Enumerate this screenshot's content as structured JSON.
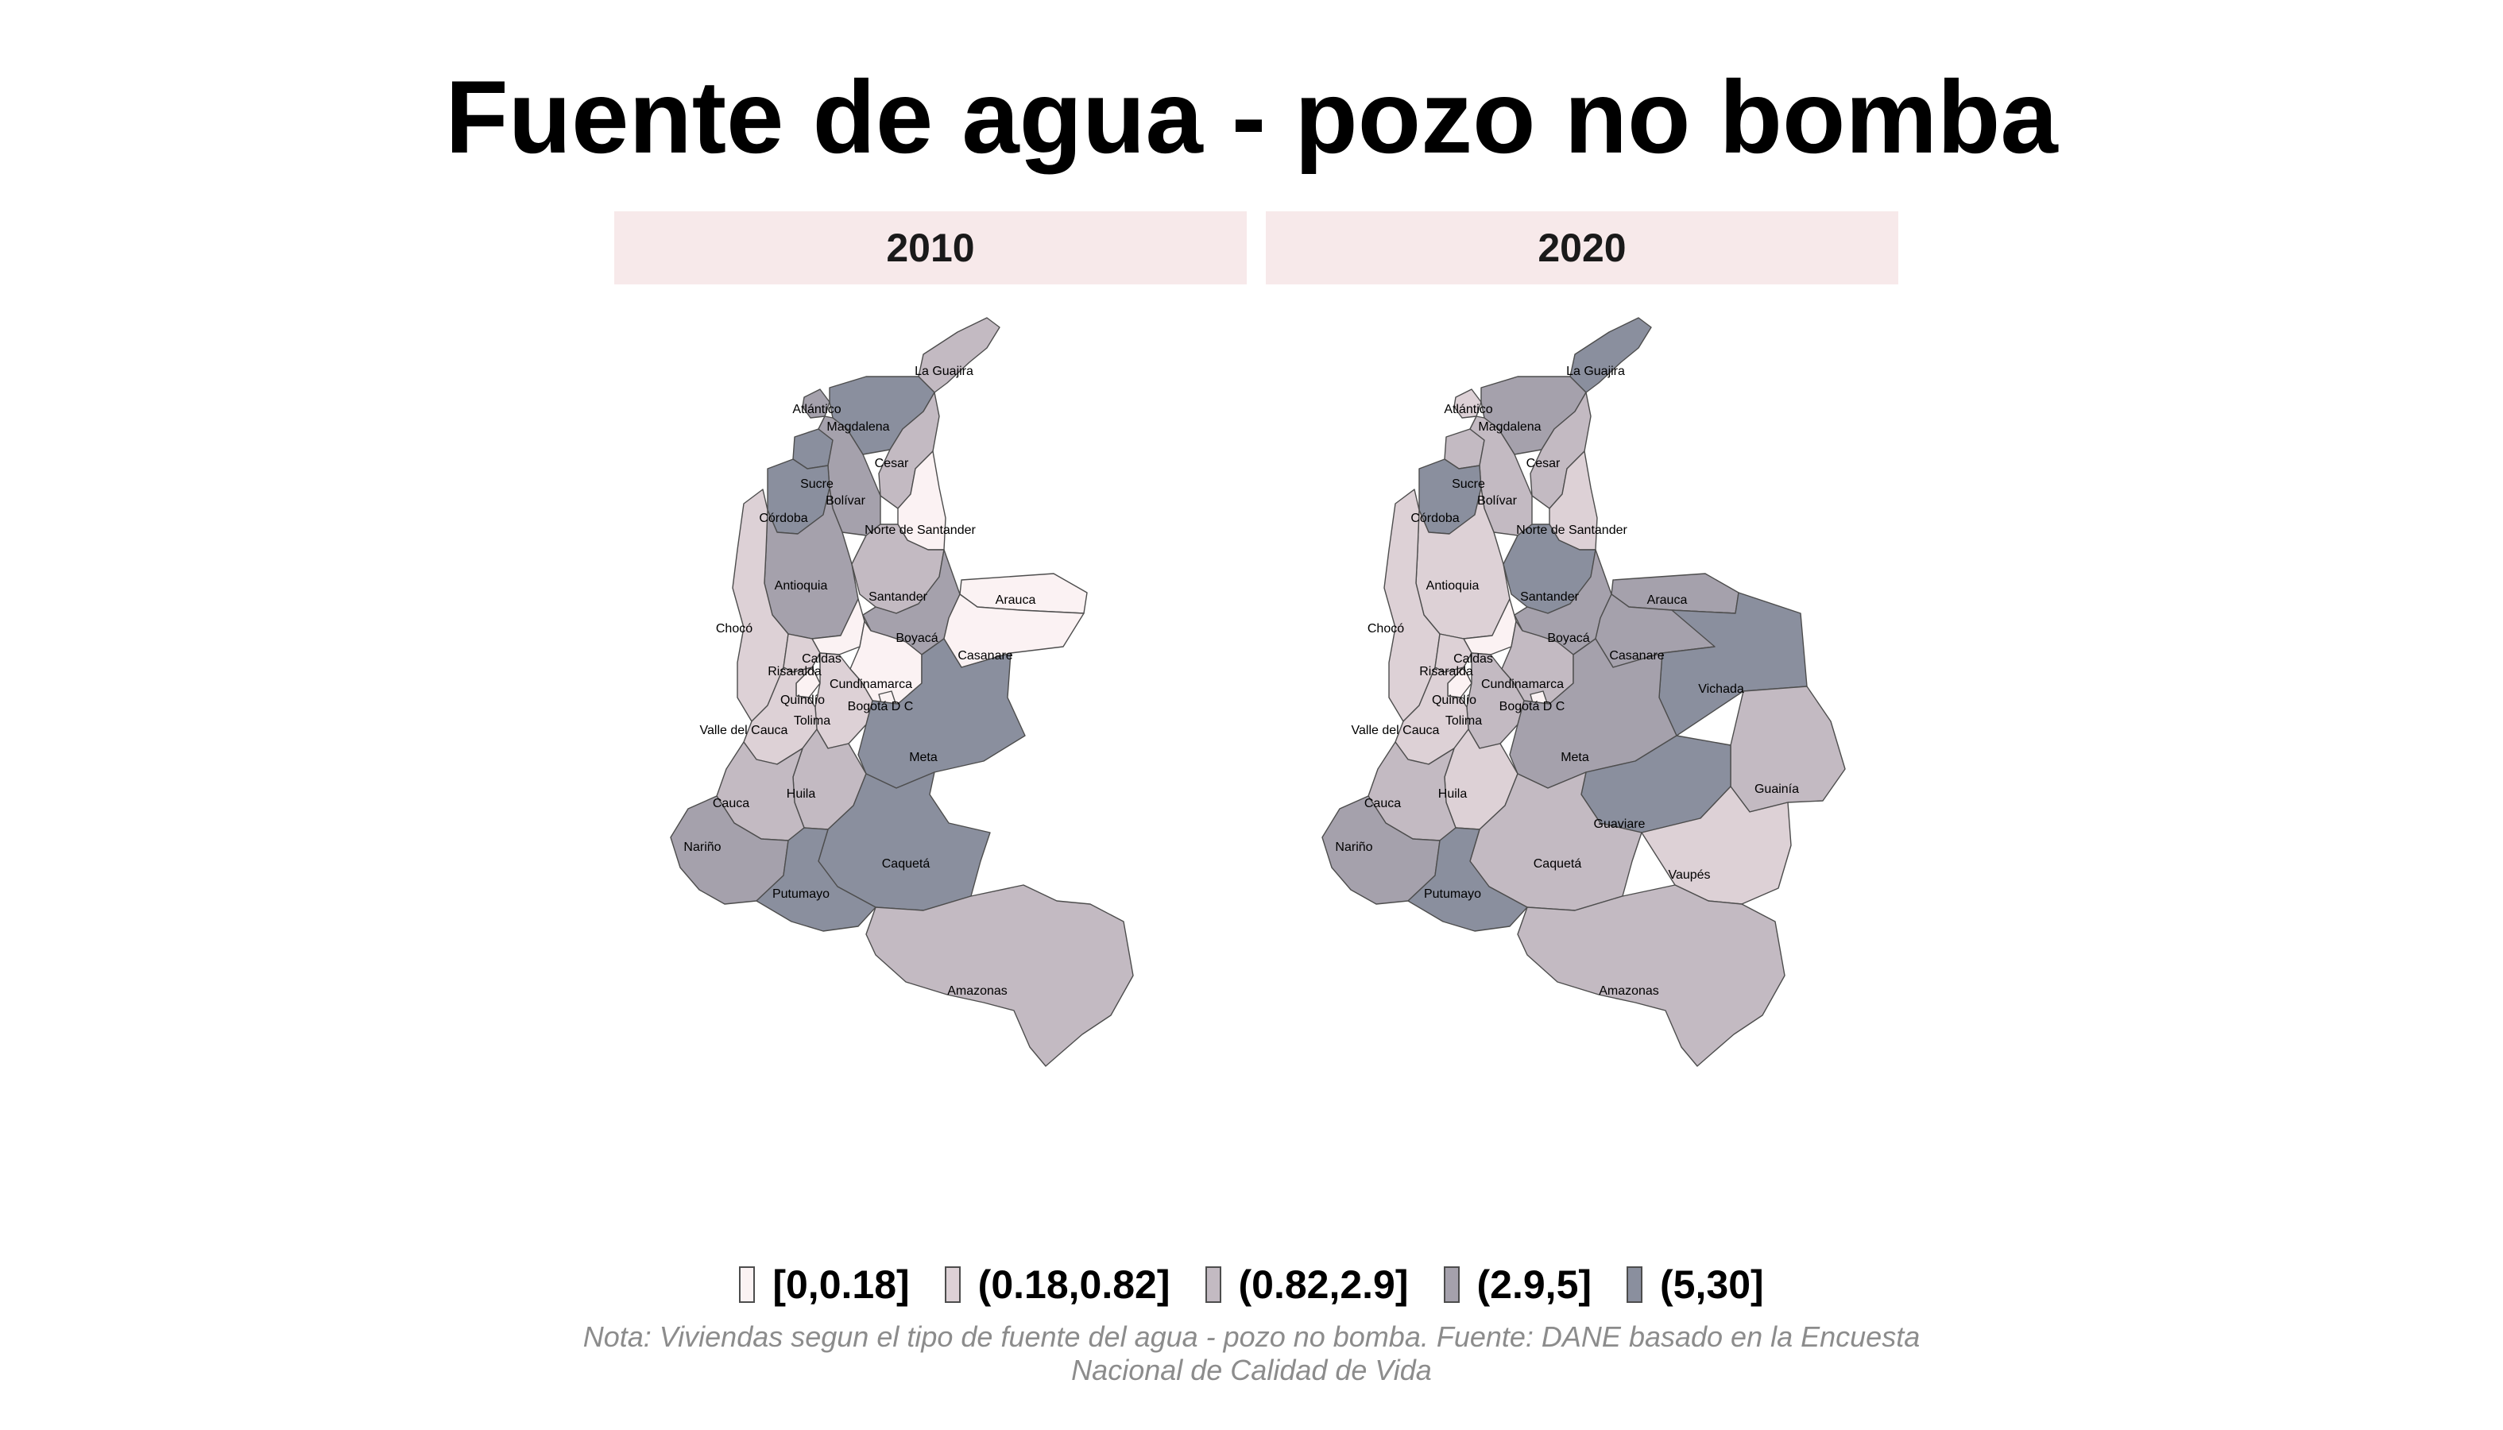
{
  "title": "Fuente de agua - pozo no bomba",
  "legend": [
    {
      "label": "[0,0.18]",
      "color": "#fbf2f3"
    },
    {
      "label": "(0.18,0.82]",
      "color": "#ddd1d6"
    },
    {
      "label": "(0.82,2.9]",
      "color": "#c3bac2"
    },
    {
      "label": "(2.9,5]",
      "color": "#a5a1ac"
    },
    {
      "label": "(5,30]",
      "color": "#8a8f9e"
    }
  ],
  "note": "Nota: Viviendas segun el tipo de fuente del agua - pozo no bomba. Fuente: DANE basado en la Encuesta Nacional de Calidad de Vida",
  "maps": [
    {
      "year": "2010",
      "departments": [
        {
          "name": "La Guajira",
          "class": 2
        },
        {
          "name": "Atlántico",
          "class": 3
        },
        {
          "name": "Magdalena",
          "class": 4
        },
        {
          "name": "Cesar",
          "class": 2
        },
        {
          "name": "Sucre",
          "class": 4
        },
        {
          "name": "Bolívar",
          "class": 3
        },
        {
          "name": "Córdoba",
          "class": 4
        },
        {
          "name": "Norte de Santander",
          "class": 0
        },
        {
          "name": "Antioquia",
          "class": 3
        },
        {
          "name": "Santander",
          "class": 2
        },
        {
          "name": "Arauca",
          "class": 0
        },
        {
          "name": "Chocó",
          "class": 1
        },
        {
          "name": "Boyacá",
          "class": 3
        },
        {
          "name": "Casanare",
          "class": 0
        },
        {
          "name": "Caldas",
          "class": 0
        },
        {
          "name": "Risaralda",
          "class": 1
        },
        {
          "name": "Cundinamarca",
          "class": 0
        },
        {
          "name": "Quindío",
          "class": 0
        },
        {
          "name": "Bogotá D C",
          "class": 0
        },
        {
          "name": "Tolima",
          "class": 1
        },
        {
          "name": "Valle del Cauca",
          "class": 1
        },
        {
          "name": "Meta",
          "class": 4
        },
        {
          "name": "Huila",
          "class": 2
        },
        {
          "name": "Cauca",
          "class": 2
        },
        {
          "name": "Nariño",
          "class": 3
        },
        {
          "name": "Caquetá",
          "class": 4
        },
        {
          "name": "Putumayo",
          "class": 4
        },
        {
          "name": "Amazonas",
          "class": 2
        }
      ]
    },
    {
      "year": "2020",
      "departments": [
        {
          "name": "La Guajira",
          "class": 4
        },
        {
          "name": "Atlántico",
          "class": 1
        },
        {
          "name": "Magdalena",
          "class": 3
        },
        {
          "name": "Cesar",
          "class": 2
        },
        {
          "name": "Sucre",
          "class": 2
        },
        {
          "name": "Bolívar",
          "class": 2
        },
        {
          "name": "Córdoba",
          "class": 4
        },
        {
          "name": "Norte de Santander",
          "class": 1
        },
        {
          "name": "Antioquia",
          "class": 1
        },
        {
          "name": "Santander",
          "class": 4
        },
        {
          "name": "Arauca",
          "class": 3
        },
        {
          "name": "Chocó",
          "class": 1
        },
        {
          "name": "Boyacá",
          "class": 3
        },
        {
          "name": "Casanare",
          "class": 3
        },
        {
          "name": "Vichada",
          "class": 4
        },
        {
          "name": "Caldas",
          "class": 0
        },
        {
          "name": "Risaralda",
          "class": 1
        },
        {
          "name": "Cundinamarca",
          "class": 2
        },
        {
          "name": "Quindío",
          "class": 0
        },
        {
          "name": "Bogotá D C",
          "class": 0
        },
        {
          "name": "Tolima",
          "class": 2
        },
        {
          "name": "Valle del Cauca",
          "class": 1
        },
        {
          "name": "Meta",
          "class": 3
        },
        {
          "name": "Guainía",
          "class": 2
        },
        {
          "name": "Huila",
          "class": 1
        },
        {
          "name": "Cauca",
          "class": 2
        },
        {
          "name": "Guaviare",
          "class": 4
        },
        {
          "name": "Nariño",
          "class": 3
        },
        {
          "name": "Caquetá",
          "class": 2
        },
        {
          "name": "Vaupés",
          "class": 1
        },
        {
          "name": "Putumayo",
          "class": 4
        },
        {
          "name": "Amazonas",
          "class": 2
        }
      ]
    }
  ]
}
